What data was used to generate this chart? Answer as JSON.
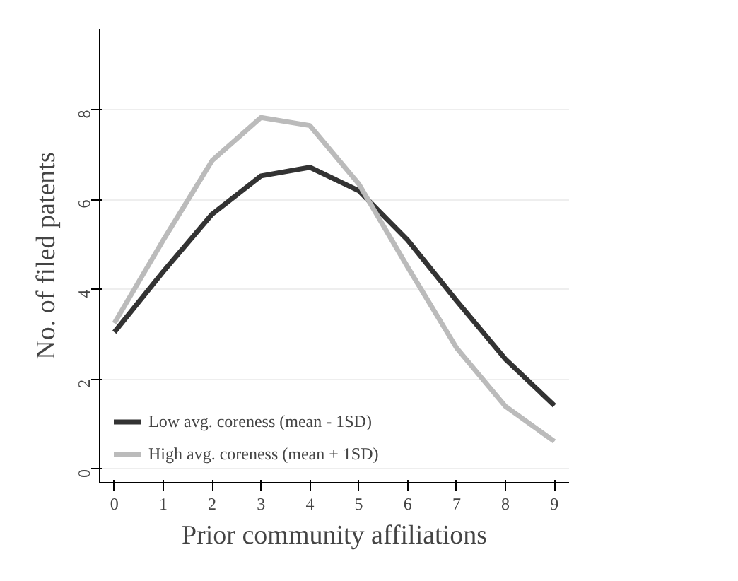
{
  "chart_data": {
    "type": "line",
    "xlabel": "Prior community affiliations",
    "ylabel": "No. of filed patents",
    "x": [
      0,
      1,
      2,
      3,
      4,
      5,
      6,
      7,
      8,
      9
    ],
    "series": [
      {
        "name": "Low avg. coreness (mean - 1SD)",
        "color": "#333333",
        "values": [
          3.05,
          4.4,
          5.68,
          6.53,
          6.72,
          6.2,
          5.1,
          3.75,
          2.45,
          1.42
        ]
      },
      {
        "name": "High avg. coreness (mean + 1SD)",
        "color": "#bbbbbb",
        "values": [
          3.25,
          5.1,
          6.87,
          7.83,
          7.65,
          6.35,
          4.5,
          2.7,
          1.4,
          0.62
        ]
      }
    ],
    "xlim": [
      -0.3,
      9.3
    ],
    "ylim": [
      -0.3,
      9.8
    ],
    "xticks": [
      0,
      1,
      2,
      3,
      4,
      5,
      6,
      7,
      8,
      9
    ],
    "yticks": [
      0,
      2,
      4,
      6,
      8
    ],
    "grid": "y",
    "legend": "bottom left",
    "marker": "none",
    "line_style": "solid"
  }
}
